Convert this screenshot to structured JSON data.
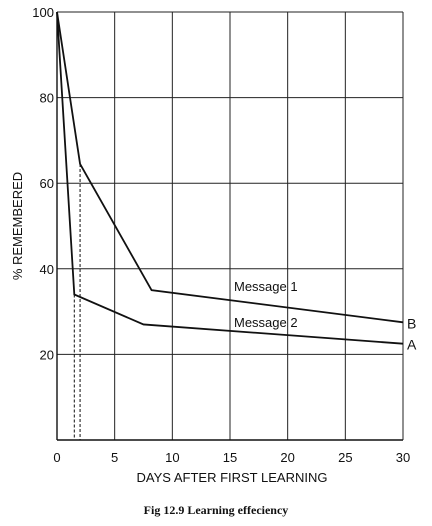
{
  "caption": "Fig 12.9  Learning effeciency",
  "chart_data": {
    "type": "line",
    "title": "",
    "xlabel": "DAYS AFTER FIRST LEARNING",
    "ylabel": "% REMEMBERED",
    "xlim": [
      0,
      30
    ],
    "ylim": [
      0,
      100
    ],
    "x_ticks": [
      0,
      5,
      10,
      15,
      20,
      25,
      30
    ],
    "y_ticks": [
      20,
      40,
      60,
      80,
      100
    ],
    "grid": true,
    "series": [
      {
        "name": "Message 1",
        "end_label": "B",
        "x": [
          0,
          2,
          8.2,
          30
        ],
        "y": [
          100,
          64.5,
          35,
          27.5
        ]
      },
      {
        "name": "Message 2",
        "end_label": "A",
        "x": [
          0,
          1.5,
          7.5,
          30
        ],
        "y": [
          100,
          34,
          27,
          22.5
        ]
      }
    ],
    "reference_lines": [
      {
        "style": "dotted",
        "x": 1.5
      },
      {
        "style": "dotted",
        "x": 2
      }
    ]
  }
}
